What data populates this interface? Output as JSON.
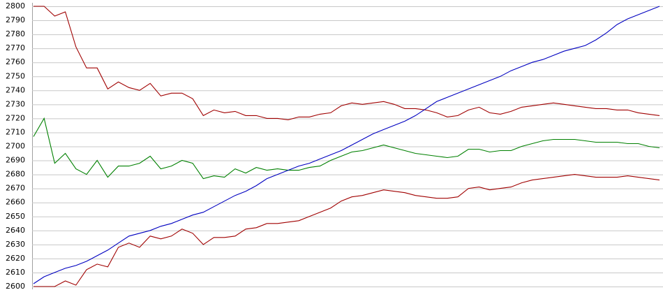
{
  "chart_data": {
    "type": "line",
    "ylim": [
      2600,
      2800
    ],
    "yticks": [
      2600,
      2610,
      2620,
      2630,
      2640,
      2650,
      2660,
      2670,
      2680,
      2690,
      2700,
      2710,
      2720,
      2730,
      2740,
      2750,
      2760,
      2770,
      2780,
      2790,
      2800
    ],
    "grid": true,
    "series": [
      {
        "color": "#a00000",
        "values": [
          2800,
          2800,
          2793,
          2796,
          2771,
          2756,
          2756,
          2741,
          2746,
          2742,
          2740,
          2745,
          2736,
          2738,
          2738,
          2734,
          2722,
          2726,
          2724,
          2725,
          2722,
          2722,
          2720,
          2720,
          2719,
          2721,
          2721,
          2723,
          2724,
          2729,
          2731,
          2730,
          2731,
          2732,
          2730,
          2727,
          2727,
          2726,
          2724,
          2721,
          2722,
          2726,
          2728,
          2724,
          2723,
          2725,
          2728,
          2729,
          2730,
          2731,
          2730,
          2729,
          2728,
          2727,
          2727,
          2726,
          2726,
          2724,
          2723,
          2722
        ]
      },
      {
        "color": "#008000",
        "values": [
          2707,
          2720,
          2688,
          2695,
          2684,
          2680,
          2690,
          2678,
          2686,
          2686,
          2688,
          2693,
          2684,
          2686,
          2690,
          2688,
          2677,
          2679,
          2678,
          2684,
          2681,
          2685,
          2683,
          2684,
          2683,
          2683,
          2685,
          2686,
          2690,
          2693,
          2696,
          2697,
          2699,
          2701,
          2699,
          2697,
          2695,
          2694,
          2693,
          2692,
          2693,
          2698,
          2698,
          2696,
          2697,
          2697,
          2700,
          2702,
          2704,
          2705,
          2705,
          2705,
          2704,
          2703,
          2703,
          2703,
          2702,
          2702,
          2700,
          2699
        ]
      },
      {
        "color": "#a00000",
        "values": [
          2600,
          2600,
          2600,
          2604,
          2601,
          2612,
          2616,
          2614,
          2628,
          2631,
          2628,
          2636,
          2634,
          2636,
          2641,
          2638,
          2630,
          2635,
          2635,
          2636,
          2641,
          2642,
          2645,
          2645,
          2646,
          2647,
          2650,
          2653,
          2656,
          2661,
          2664,
          2665,
          2667,
          2669,
          2668,
          2667,
          2665,
          2664,
          2663,
          2663,
          2664,
          2670,
          2671,
          2669,
          2670,
          2671,
          2674,
          2676,
          2677,
          2678,
          2679,
          2680,
          2679,
          2678,
          2678,
          2678,
          2679,
          2678,
          2677,
          2676
        ]
      },
      {
        "color": "#0000c0",
        "values": [
          2602,
          2607,
          2610,
          2613,
          2615,
          2618,
          2622,
          2626,
          2631,
          2636,
          2638,
          2640,
          2643,
          2645,
          2648,
          2651,
          2653,
          2657,
          2661,
          2665,
          2668,
          2672,
          2677,
          2680,
          2683,
          2686,
          2688,
          2691,
          2694,
          2697,
          2701,
          2705,
          2709,
          2712,
          2715,
          2718,
          2722,
          2727,
          2732,
          2735,
          2738,
          2741,
          2744,
          2747,
          2750,
          2754,
          2757,
          2760,
          2762,
          2765,
          2768,
          2770,
          2772,
          2776,
          2781,
          2787,
          2791,
          2794,
          2797,
          2800
        ]
      }
    ]
  }
}
